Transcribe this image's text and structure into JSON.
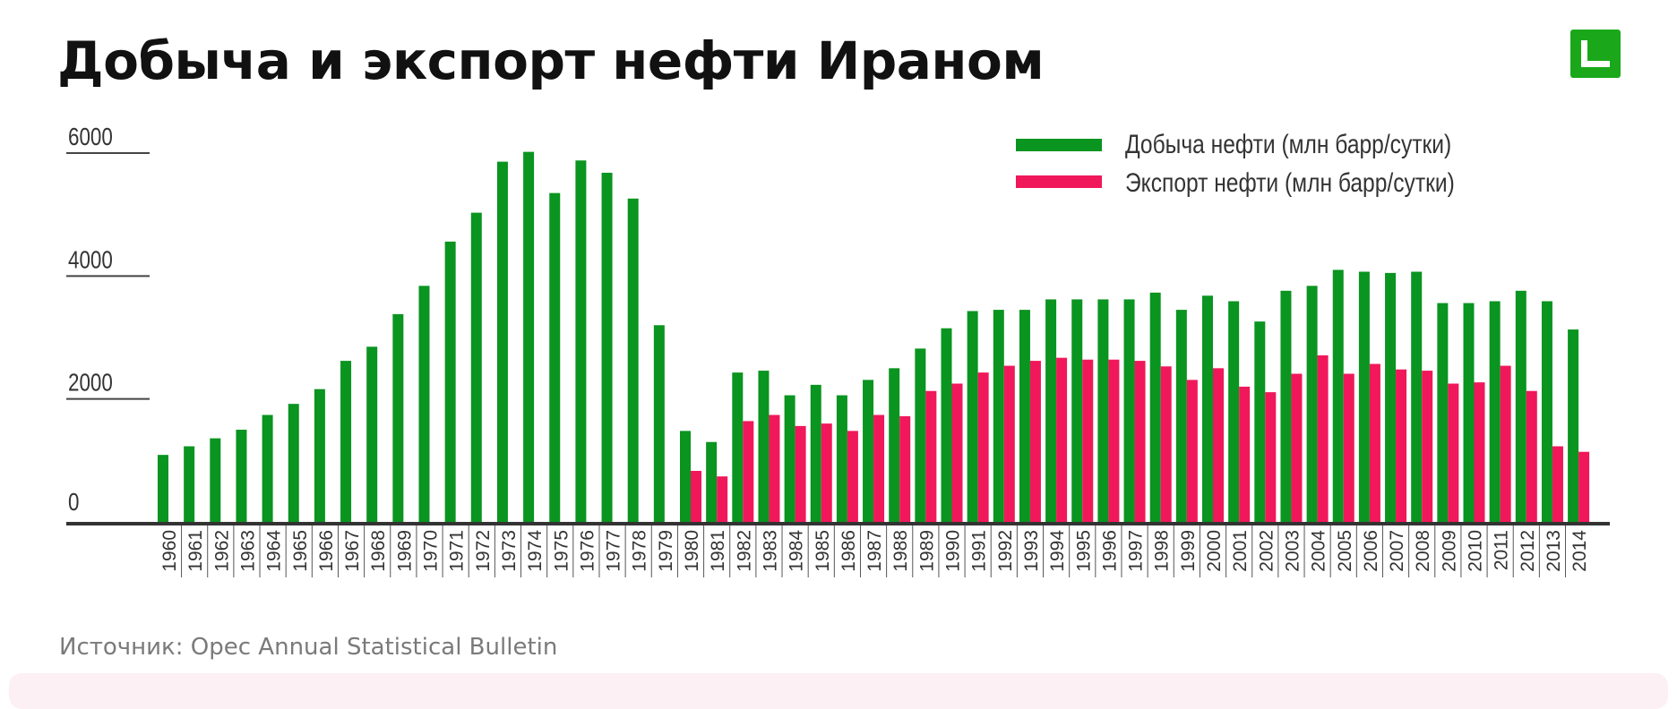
{
  "title": "Добыча и экспорт нефти Ираном",
  "source": "Источник: Opec Annual Statistical Bulletin",
  "logo_icon": "green-square-logo-icon",
  "colors": {
    "production": "#0a9420",
    "export": "#f0185a",
    "logo": "#1aa81a"
  },
  "chart_data": {
    "type": "bar",
    "title": "",
    "xlabel": "",
    "ylabel": "",
    "ylim": [
      0,
      6000
    ],
    "yticks": [
      0,
      2000,
      4000,
      6000
    ],
    "grid": false,
    "legend": "top-right",
    "categories": [
      "1960",
      "1961",
      "1962",
      "1963",
      "1964",
      "1965",
      "1966",
      "1967",
      "1968",
      "1969",
      "1970",
      "1971",
      "1972",
      "1973",
      "1974",
      "1975",
      "1976",
      "1977",
      "1978",
      "1979",
      "1980",
      "1981",
      "1982",
      "1983",
      "1984",
      "1985",
      "1986",
      "1987",
      "1988",
      "1989",
      "1990",
      "1991",
      "1992",
      "1993",
      "1994",
      "1995",
      "1996",
      "1997",
      "1998",
      "1999",
      "2000",
      "2001",
      "2002",
      "2003",
      "2004",
      "2005",
      "2006",
      "2007",
      "2008",
      "2009",
      "2010",
      "2011",
      "2012",
      "2013",
      "2014"
    ],
    "series": [
      {
        "name": "Добыча нефти (млн барр/сутки)",
        "values": [
          1090,
          1230,
          1360,
          1500,
          1740,
          1920,
          2160,
          2620,
          2850,
          3380,
          3840,
          4560,
          5030,
          5860,
          6020,
          5350,
          5880,
          5680,
          5260,
          3200,
          1480,
          1300,
          2430,
          2460,
          2060,
          2230,
          2060,
          2310,
          2500,
          2820,
          3150,
          3430,
          3450,
          3450,
          3620,
          3620,
          3620,
          3620,
          3730,
          3450,
          3680,
          3590,
          3260,
          3760,
          3840,
          4100,
          4070,
          4050,
          4070,
          3560,
          3560,
          3590,
          3760,
          3590,
          3130
        ]
      },
      {
        "name": "Экспорт нефти (млн барр/сутки)",
        "values": [
          null,
          null,
          null,
          null,
          null,
          null,
          null,
          null,
          null,
          null,
          null,
          null,
          null,
          null,
          null,
          null,
          null,
          null,
          null,
          null,
          830,
          740,
          1640,
          1740,
          1560,
          1600,
          1480,
          1740,
          1720,
          2130,
          2250,
          2430,
          2540,
          2620,
          2670,
          2640,
          2640,
          2620,
          2530,
          2310,
          2500,
          2200,
          2110,
          2410,
          2710,
          2410,
          2570,
          2480,
          2460,
          2250,
          2270,
          2540,
          2130,
          1230,
          1140
        ]
      }
    ]
  }
}
